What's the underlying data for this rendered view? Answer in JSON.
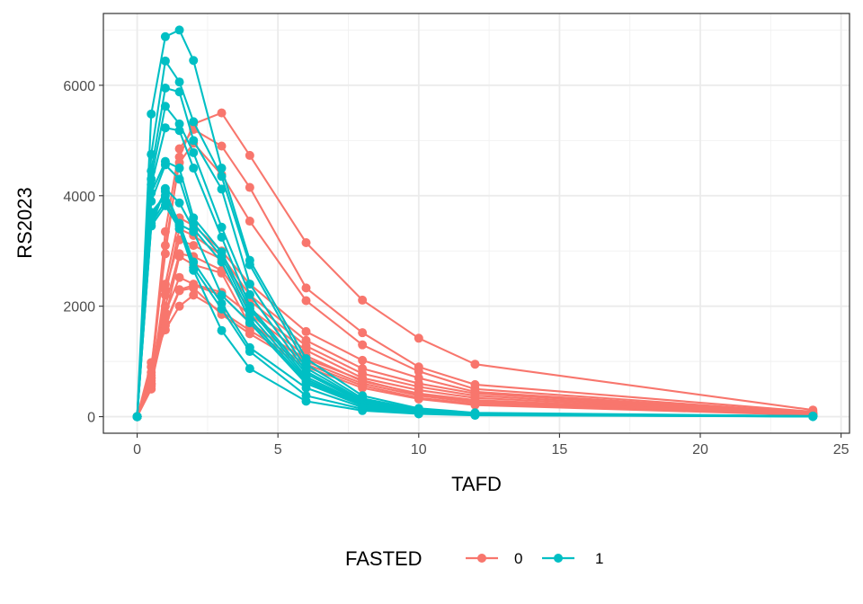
{
  "chart_data": {
    "type": "line",
    "title": "",
    "xlabel": "TAFD",
    "ylabel": "RS2023",
    "xlim": [
      -1.2,
      25.3
    ],
    "ylim": [
      -300,
      7300
    ],
    "xticks": [
      0,
      5,
      10,
      15,
      20,
      25
    ],
    "yticks": [
      0,
      2000,
      4000,
      6000
    ],
    "grid": true,
    "colors": {
      "0": "#F8766D",
      "1": "#00BFC4"
    },
    "legend": {
      "title": "FASTED",
      "position": "bottom",
      "entries": [
        "0",
        "1"
      ]
    },
    "x": [
      0,
      0.5,
      1,
      1.5,
      2,
      3,
      4,
      6,
      8,
      10,
      12,
      24
    ],
    "series": [
      {
        "name": "0",
        "values": [
          0,
          900,
          2950,
          4700,
          5300,
          5500,
          4730,
          3150,
          2110,
          1420,
          950,
          120
        ]
      },
      {
        "name": "0",
        "values": [
          0,
          800,
          3350,
          4850,
          5200,
          4900,
          4150,
          2330,
          1520,
          900,
          580,
          90
        ]
      },
      {
        "name": "0",
        "values": [
          0,
          700,
          3100,
          4600,
          4950,
          4380,
          3540,
          2100,
          1300,
          820,
          500,
          70
        ]
      },
      {
        "name": "0",
        "values": [
          0,
          600,
          2400,
          3600,
          3460,
          3000,
          2400,
          1540,
          1020,
          700,
          450,
          60
        ]
      },
      {
        "name": "0",
        "values": [
          0,
          550,
          2200,
          3400,
          3280,
          2920,
          2200,
          1380,
          870,
          600,
          420,
          55
        ]
      },
      {
        "name": "0",
        "values": [
          0,
          650,
          2300,
          3200,
          3100,
          2850,
          2100,
          1280,
          780,
          540,
          380,
          50
        ]
      },
      {
        "name": "0",
        "values": [
          0,
          500,
          2000,
          2950,
          2900,
          2650,
          1950,
          1200,
          700,
          480,
          340,
          45
        ]
      },
      {
        "name": "0",
        "values": [
          0,
          750,
          1880,
          2520,
          2400,
          2250,
          1850,
          1100,
          640,
          420,
          300,
          40
        ]
      },
      {
        "name": "0",
        "values": [
          0,
          600,
          1700,
          2300,
          2380,
          2200,
          1700,
          1000,
          600,
          380,
          260,
          35
        ]
      },
      {
        "name": "0",
        "values": [
          0,
          980,
          1570,
          2000,
          2200,
          1900,
          1560,
          950,
          560,
          340,
          230,
          30
        ]
      },
      {
        "name": "0",
        "values": [
          0,
          700,
          1650,
          2280,
          2330,
          1850,
          1500,
          900,
          520,
          320,
          210,
          28
        ]
      },
      {
        "name": "0",
        "values": [
          0,
          580,
          1800,
          2900,
          2750,
          2600,
          1650,
          1050,
          660,
          400,
          280,
          38
        ]
      },
      {
        "name": "1",
        "values": [
          0,
          5480,
          6880,
          7000,
          6450,
          4500,
          2830,
          1050,
          380,
          150,
          70,
          10
        ]
      },
      {
        "name": "1",
        "values": [
          0,
          4750,
          6440,
          6060,
          5340,
          4350,
          2750,
          950,
          330,
          130,
          60,
          8
        ]
      },
      {
        "name": "1",
        "values": [
          0,
          4450,
          5950,
          5880,
          5000,
          4120,
          2400,
          880,
          300,
          120,
          55,
          8
        ]
      },
      {
        "name": "1",
        "values": [
          0,
          4300,
          5620,
          5300,
          4780,
          3430,
          2210,
          820,
          280,
          110,
          50,
          7
        ]
      },
      {
        "name": "1",
        "values": [
          0,
          4200,
          5230,
          5180,
          4500,
          3250,
          2000,
          780,
          260,
          100,
          45,
          6
        ]
      },
      {
        "name": "1",
        "values": [
          0,
          4050,
          4620,
          4500,
          3600,
          2980,
          1950,
          720,
          240,
          95,
          42,
          6
        ]
      },
      {
        "name": "1",
        "values": [
          0,
          3900,
          4560,
          4300,
          3500,
          2900,
          1850,
          680,
          220,
          90,
          40,
          5
        ]
      },
      {
        "name": "1",
        "values": [
          0,
          3460,
          4130,
          3870,
          3400,
          2800,
          1760,
          640,
          210,
          85,
          38,
          5
        ]
      },
      {
        "name": "1",
        "values": [
          0,
          3600,
          4080,
          3480,
          3350,
          2200,
          1700,
          600,
          200,
          80,
          35,
          5
        ]
      },
      {
        "name": "1",
        "values": [
          0,
          3700,
          4000,
          3500,
          2800,
          2050,
          1250,
          520,
          170,
          70,
          32,
          4
        ]
      },
      {
        "name": "1",
        "values": [
          0,
          3500,
          3900,
          3450,
          2700,
          1950,
          1180,
          380,
          140,
          60,
          30,
          4
        ]
      },
      {
        "name": "1",
        "values": [
          0,
          3450,
          3820,
          3400,
          2650,
          1560,
          870,
          280,
          110,
          50,
          25,
          3
        ]
      }
    ]
  }
}
